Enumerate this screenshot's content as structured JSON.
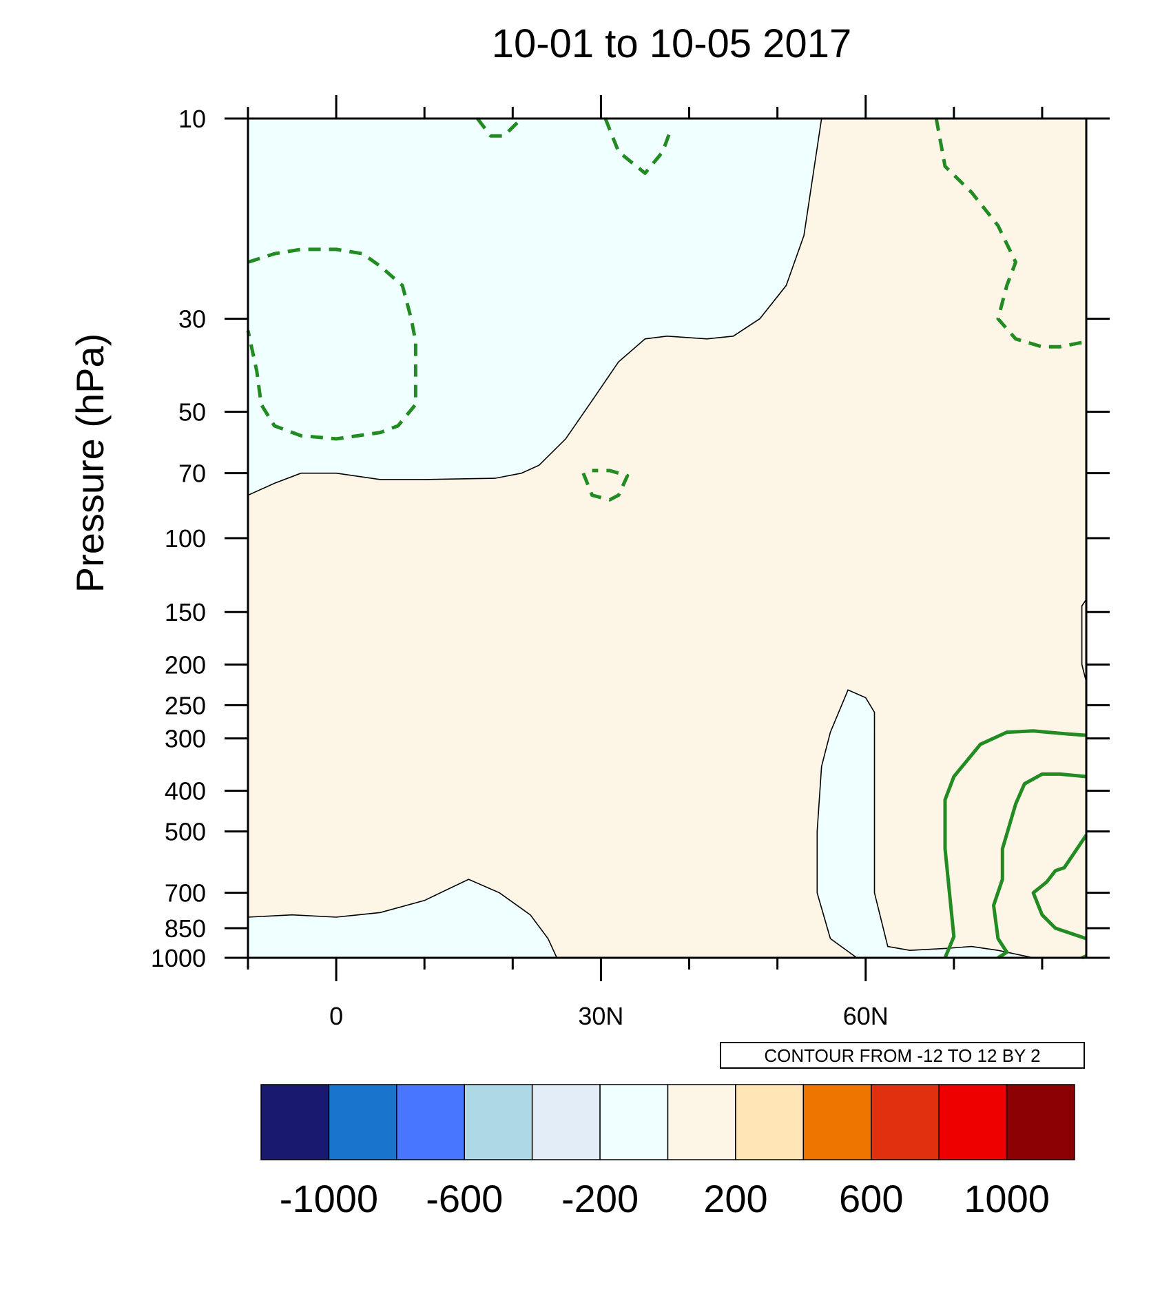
{
  "chart_data": {
    "type": "contour",
    "title": "10-01 to 10-05 2017",
    "xlabel": "",
    "ylabel": "Pressure (hPa)",
    "x_ticks": [
      {
        "value": 0,
        "label": "0"
      },
      {
        "value": 30,
        "label": "30N"
      },
      {
        "value": 60,
        "label": "60N"
      }
    ],
    "xlim": [
      -10,
      85
    ],
    "y_scale": "log",
    "y_reversed": true,
    "ylim": [
      1000,
      10
    ],
    "y_ticks": [
      10,
      30,
      50,
      70,
      100,
      150,
      200,
      250,
      300,
      400,
      500,
      700,
      850,
      1000
    ],
    "contour_info": "CONTOUR FROM -12 TO 12 BY 2",
    "colorbar": {
      "boundaries": [
        -1000,
        -800,
        -600,
        -400,
        -200,
        0,
        200,
        400,
        600,
        800,
        1000
      ],
      "labels": [
        "-1000",
        "-600",
        "-200",
        "200",
        "600",
        "1000"
      ],
      "colors": [
        "#191970",
        "#1874cd",
        "#4876ff",
        "#add8e6",
        "#e3edf8",
        "#f0ffff",
        "#fdf5e6",
        "#ffe4b5",
        "#ee7600",
        "#e0300f",
        "#ee0000",
        "#8b0000"
      ]
    },
    "fill_regions": [
      {
        "sign": "negative",
        "color": "#f0ffff",
        "points": [
          [
            -10,
            10
          ],
          [
            55,
            10
          ],
          [
            53,
            19
          ],
          [
            51,
            25
          ],
          [
            48,
            30
          ],
          [
            45,
            33
          ],
          [
            42,
            33.5
          ],
          [
            37.5,
            33
          ],
          [
            35,
            33.5
          ],
          [
            32,
            38
          ],
          [
            29,
            47
          ],
          [
            26,
            58
          ],
          [
            23,
            67
          ],
          [
            21,
            70
          ],
          [
            18,
            72
          ],
          [
            10,
            72.5
          ],
          [
            5,
            72.5
          ],
          [
            0,
            70
          ],
          [
            -4,
            70
          ],
          [
            -7,
            74
          ],
          [
            -10,
            79
          ]
        ]
      },
      {
        "sign": "negative",
        "color": "#f0ffff",
        "points": [
          [
            -10,
            800
          ],
          [
            -5,
            790
          ],
          [
            0,
            800
          ],
          [
            5,
            780
          ],
          [
            10,
            730
          ],
          [
            15,
            650
          ],
          [
            18.5,
            700
          ],
          [
            22,
            790
          ],
          [
            24,
            900
          ],
          [
            25,
            1000
          ],
          [
            -10,
            1000
          ]
        ]
      },
      {
        "sign": "negative",
        "color": "#f0ffff",
        "points": [
          [
            54.5,
            500
          ],
          [
            55,
            350
          ],
          [
            56,
            290
          ],
          [
            58,
            230
          ],
          [
            60,
            240
          ],
          [
            61,
            260
          ],
          [
            61,
            700
          ],
          [
            62.5,
            940
          ],
          [
            65,
            960
          ],
          [
            69,
            950
          ],
          [
            72,
            940
          ],
          [
            75,
            960
          ],
          [
            79,
            1000
          ],
          [
            59,
            1000
          ],
          [
            56,
            900
          ],
          [
            54.5,
            700
          ]
        ]
      }
    ],
    "zero_contours": [
      [
        [
          -10,
          79
        ],
        [
          -7,
          74
        ],
        [
          -4,
          70
        ],
        [
          0,
          70
        ],
        [
          5,
          72.5
        ],
        [
          10,
          72.5
        ],
        [
          18,
          72
        ],
        [
          21,
          70
        ],
        [
          23,
          67
        ],
        [
          26,
          58
        ],
        [
          29,
          47
        ],
        [
          32,
          38
        ],
        [
          35,
          33.5
        ],
        [
          37.5,
          33
        ],
        [
          42,
          33.5
        ],
        [
          45,
          33
        ],
        [
          48,
          30
        ],
        [
          51,
          25
        ],
        [
          53,
          19
        ],
        [
          55,
          10
        ]
      ],
      [
        [
          -10,
          800
        ],
        [
          -5,
          790
        ],
        [
          0,
          800
        ],
        [
          5,
          780
        ],
        [
          10,
          730
        ],
        [
          15,
          650
        ],
        [
          18.5,
          700
        ],
        [
          22,
          790
        ],
        [
          24,
          900
        ],
        [
          25,
          1000
        ]
      ],
      [
        [
          59,
          1000
        ],
        [
          56,
          900
        ],
        [
          54.5,
          700
        ],
        [
          54.5,
          500
        ],
        [
          55,
          350
        ],
        [
          56,
          290
        ],
        [
          58,
          230
        ],
        [
          60,
          240
        ],
        [
          61,
          260
        ],
        [
          61,
          700
        ],
        [
          62.5,
          940
        ],
        [
          65,
          960
        ],
        [
          69,
          950
        ],
        [
          72,
          940
        ],
        [
          75,
          960
        ],
        [
          79,
          1000
        ]
      ],
      [
        [
          85,
          140
        ],
        [
          84.5,
          145
        ],
        [
          84.5,
          200
        ],
        [
          85,
          220
        ]
      ]
    ],
    "green_contours": [
      {
        "style": "dashed",
        "points": [
          [
            -10,
            22
          ],
          [
            -7,
            21
          ],
          [
            -4,
            20.5
          ],
          [
            0,
            20.5
          ],
          [
            3,
            21
          ],
          [
            5,
            22.5
          ],
          [
            7.5,
            25
          ],
          [
            8.5,
            30
          ],
          [
            9,
            34
          ],
          [
            9,
            42
          ],
          [
            9,
            48
          ],
          [
            7,
            54
          ],
          [
            5,
            56
          ],
          [
            0,
            58
          ],
          [
            -4,
            57
          ],
          [
            -7,
            54
          ],
          [
            -8.5,
            48
          ],
          [
            -9,
            40
          ],
          [
            -10,
            32
          ]
        ]
      },
      {
        "style": "dashed",
        "points": [
          [
            16,
            10
          ],
          [
            17.5,
            11
          ],
          [
            19,
            11
          ],
          [
            21,
            10
          ]
        ]
      },
      {
        "style": "dashed",
        "points": [
          [
            30.5,
            10
          ],
          [
            32,
            12
          ],
          [
            35,
            13.5
          ],
          [
            37,
            12
          ],
          [
            38,
            10.5
          ]
        ]
      },
      {
        "style": "dashed",
        "points": [
          [
            28,
            70
          ],
          [
            29,
            79
          ],
          [
            31,
            81
          ],
          [
            32,
            79
          ],
          [
            33,
            71
          ],
          [
            31,
            69
          ],
          [
            29,
            69
          ]
        ]
      },
      {
        "style": "dashed",
        "points": [
          [
            68,
            10
          ],
          [
            69,
            13
          ],
          [
            72,
            15
          ],
          [
            75,
            18
          ],
          [
            77,
            22
          ],
          [
            76,
            25
          ],
          [
            75,
            30
          ],
          [
            77,
            33.5
          ],
          [
            80,
            35
          ],
          [
            82,
            35
          ],
          [
            85,
            34
          ]
        ]
      },
      {
        "style": "solid",
        "points": [
          [
            85,
            295
          ],
          [
            83,
            293
          ],
          [
            79,
            288
          ],
          [
            76,
            290
          ],
          [
            73,
            310
          ],
          [
            70,
            370
          ],
          [
            69,
            420
          ],
          [
            69,
            550
          ],
          [
            69.5,
            700
          ],
          [
            70,
            890
          ],
          [
            69,
            1000
          ]
        ]
      },
      {
        "style": "solid",
        "points": [
          [
            85,
            370
          ],
          [
            82,
            365
          ],
          [
            80,
            365
          ],
          [
            78,
            385
          ],
          [
            77,
            430
          ],
          [
            75.5,
            550
          ],
          [
            75.5,
            650
          ],
          [
            74.5,
            750
          ],
          [
            75,
            900
          ],
          [
            76,
            970
          ],
          [
            75,
            1000
          ]
        ]
      },
      {
        "style": "solid",
        "points": [
          [
            85,
            510
          ],
          [
            82.5,
            610
          ],
          [
            81.5,
            620
          ],
          [
            80.5,
            660
          ],
          [
            79,
            700
          ],
          [
            80,
            790
          ],
          [
            81.5,
            850
          ],
          [
            85,
            900
          ]
        ]
      },
      {
        "style": "solid",
        "points": [
          [
            84.5,
            1000
          ],
          [
            85,
            990
          ]
        ]
      }
    ]
  }
}
